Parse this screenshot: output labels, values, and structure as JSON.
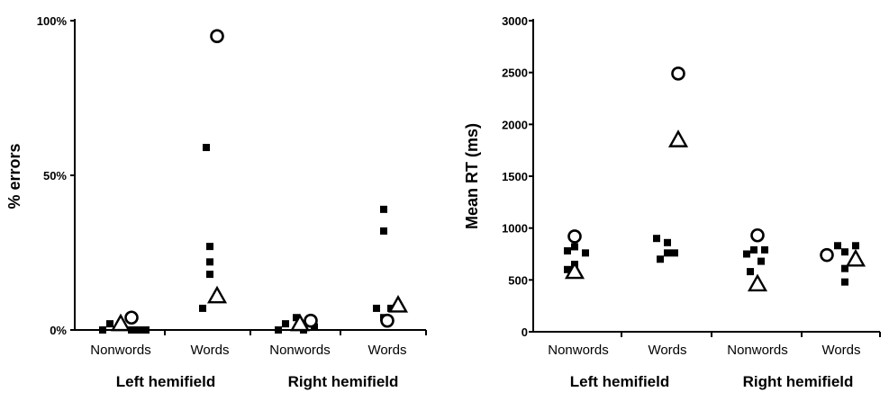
{
  "chart_data": [
    {
      "type": "scatter",
      "ylabel": "% errors",
      "ylim": [
        0,
        100
      ],
      "yticks": [
        "0%",
        "50%",
        "100%"
      ],
      "yticks_values": [
        0,
        50,
        100
      ],
      "categories": [
        "Nonwords",
        "Words",
        "Nonwords",
        "Words"
      ],
      "groups": [
        {
          "label": "Left hemifield",
          "categories": [
            0,
            1
          ]
        },
        {
          "label": "Right hemifield",
          "categories": [
            2,
            3
          ]
        }
      ],
      "squares": [
        {
          "cat": 0,
          "points": [
            {
              "dx": -0.5,
              "y": 0
            },
            {
              "dx": -0.3,
              "y": 2
            },
            {
              "dx": 0.3,
              "y": 0
            },
            {
              "dx": 0.5,
              "y": 0
            },
            {
              "dx": 0.7,
              "y": 0
            }
          ]
        },
        {
          "cat": 1,
          "points": [
            {
              "dx": -0.1,
              "y": 59
            },
            {
              "dx": 0.0,
              "y": 27
            },
            {
              "dx": 0.0,
              "y": 22
            },
            {
              "dx": 0.0,
              "y": 18
            },
            {
              "dx": -0.2,
              "y": 7
            }
          ]
        },
        {
          "cat": 2,
          "points": [
            {
              "dx": -0.6,
              "y": 0
            },
            {
              "dx": -0.4,
              "y": 2
            },
            {
              "dx": -0.1,
              "y": 4
            },
            {
              "dx": 0.1,
              "y": 0
            },
            {
              "dx": 0.4,
              "y": 1
            }
          ]
        },
        {
          "cat": 3,
          "points": [
            {
              "dx": -0.1,
              "y": 39
            },
            {
              "dx": -0.1,
              "y": 32
            },
            {
              "dx": -0.3,
              "y": 7
            },
            {
              "dx": -0.1,
              "y": 4
            },
            {
              "dx": 0.1,
              "y": 7
            }
          ]
        }
      ],
      "circles": [
        {
          "cat": 0,
          "dx": 0.3,
          "y": 4
        },
        {
          "cat": 1,
          "dx": 0.2,
          "y": 95
        },
        {
          "cat": 2,
          "dx": 0.3,
          "y": 3
        },
        {
          "cat": 3,
          "dx": 0.0,
          "y": 3
        }
      ],
      "triangles": [
        {
          "cat": 0,
          "dx": 0.0,
          "y": 2
        },
        {
          "cat": 1,
          "dx": 0.2,
          "y": 11
        },
        {
          "cat": 2,
          "dx": 0.0,
          "y": 2
        },
        {
          "cat": 3,
          "dx": 0.3,
          "y": 8
        }
      ]
    },
    {
      "type": "scatter",
      "ylabel": "Mean RT (ms)",
      "ylim": [
        0,
        3000
      ],
      "yticks": [
        "0",
        "500",
        "1000",
        "1500",
        "2000",
        "2500",
        "3000"
      ],
      "yticks_values": [
        0,
        500,
        1000,
        1500,
        2000,
        2500,
        3000
      ],
      "categories": [
        "Nonwords",
        "Words",
        "Nonwords",
        "Words"
      ],
      "groups": [
        {
          "label": "Left hemifield",
          "categories": [
            0,
            1
          ]
        },
        {
          "label": "Right hemifield",
          "categories": [
            2,
            3
          ]
        }
      ],
      "squares": [
        {
          "cat": 0,
          "points": [
            {
              "dx": -0.3,
              "y": 780
            },
            {
              "dx": -0.1,
              "y": 820
            },
            {
              "dx": 0.2,
              "y": 760
            },
            {
              "dx": -0.3,
              "y": 600
            },
            {
              "dx": -0.1,
              "y": 650
            }
          ]
        },
        {
          "cat": 1,
          "points": [
            {
              "dx": -0.3,
              "y": 900
            },
            {
              "dx": 0.0,
              "y": 860
            },
            {
              "dx": -0.2,
              "y": 700
            },
            {
              "dx": 0.0,
              "y": 760
            },
            {
              "dx": 0.2,
              "y": 760
            }
          ]
        },
        {
          "cat": 2,
          "points": [
            {
              "dx": -0.3,
              "y": 750
            },
            {
              "dx": -0.1,
              "y": 790
            },
            {
              "dx": 0.2,
              "y": 790
            },
            {
              "dx": -0.2,
              "y": 580
            },
            {
              "dx": 0.1,
              "y": 680
            }
          ]
        },
        {
          "cat": 3,
          "points": [
            {
              "dx": -0.1,
              "y": 830
            },
            {
              "dx": 0.1,
              "y": 770
            },
            {
              "dx": 0.4,
              "y": 830
            },
            {
              "dx": 0.1,
              "y": 610
            },
            {
              "dx": 0.1,
              "y": 480
            }
          ]
        }
      ],
      "circles": [
        {
          "cat": 0,
          "dx": -0.1,
          "y": 920
        },
        {
          "cat": 1,
          "dx": 0.3,
          "y": 2490
        },
        {
          "cat": 2,
          "dx": 0.0,
          "y": 930
        },
        {
          "cat": 3,
          "dx": -0.4,
          "y": 740
        }
      ],
      "triangles": [
        {
          "cat": 0,
          "dx": -0.1,
          "y": 580
        },
        {
          "cat": 1,
          "dx": 0.3,
          "y": 1850
        },
        {
          "cat": 2,
          "dx": 0.0,
          "y": 460
        },
        {
          "cat": 3,
          "dx": 0.4,
          "y": 700
        }
      ]
    }
  ]
}
